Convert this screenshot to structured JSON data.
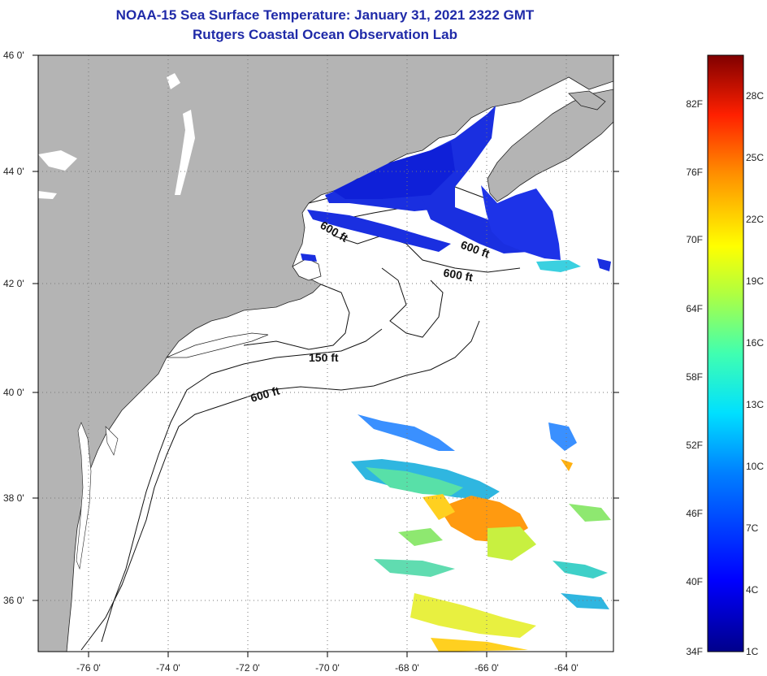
{
  "title": "NOAA-15 Sea Surface Temperature:  January 31, 2021 2322 GMT",
  "subtitle": "Rutgers Coastal Ocean Observation Lab",
  "lat_labels": [
    "46 0'",
    "44 0'",
    "42 0'",
    "40 0'",
    "38 0'",
    "36 0'"
  ],
  "lon_labels": [
    "-76 0'",
    "-74 0'",
    "-72 0'",
    "-70 0'",
    "-68 0'",
    "-66 0'",
    "-64 0'"
  ],
  "contour_labels": [
    "600 ft",
    "600 ft",
    "600 ft",
    "150 ft",
    "600 ft"
  ],
  "colorbar": {
    "fahrenheit": [
      "82F",
      "76F",
      "70F",
      "64F",
      "58F",
      "52F",
      "46F",
      "40F",
      "34F"
    ],
    "celsius": [
      "28C",
      "25C",
      "22C",
      "19C",
      "16C",
      "13C",
      "10C",
      "7C",
      "4C",
      "1C"
    ]
  },
  "colors": {
    "land": "#b4b4b4",
    "ocean": "#ffffff",
    "title": "#1f2aa8"
  }
}
